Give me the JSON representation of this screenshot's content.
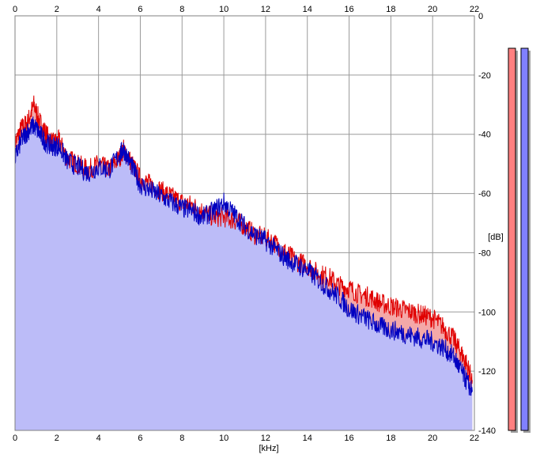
{
  "chart_data": {
    "type": "area",
    "x_unit_label": "[kHz]",
    "y_unit_label": "[dB]",
    "xlim": [
      0,
      22
    ],
    "ylim": [
      -140,
      0
    ],
    "x_ticks": [
      "0",
      "2",
      "4",
      "6",
      "8",
      "10",
      "12",
      "14",
      "16",
      "18",
      "20",
      "22"
    ],
    "y_ticks": [
      "0",
      "-20",
      "-40",
      "-60",
      "-80",
      "-100",
      "-120",
      "-140"
    ],
    "grid": true,
    "series": [
      {
        "color": "#e00000",
        "fill": "#f4a8a8",
        "x": [
          0,
          0.3,
          0.6,
          0.9,
          1.2,
          1.5,
          1.8,
          2.1,
          2.5,
          3.0,
          3.5,
          4.0,
          4.5,
          5.0,
          5.2,
          5.6,
          6.0,
          6.5,
          7.0,
          7.5,
          8.0,
          8.5,
          9.0,
          9.5,
          10.0,
          10.5,
          11.0,
          11.5,
          12.0,
          12.5,
          13.0,
          13.5,
          14.0,
          14.5,
          15.0,
          15.5,
          16.0,
          16.5,
          17.0,
          17.5,
          18.0,
          18.5,
          19.0,
          19.5,
          20.0,
          20.5,
          21.0,
          21.3,
          21.6,
          21.9
        ],
        "y": [
          -43,
          -38,
          -36,
          -30,
          -36,
          -40,
          -43,
          -42,
          -48,
          -50,
          -52,
          -50,
          -52,
          -48,
          -45,
          -50,
          -55,
          -57,
          -59,
          -61,
          -63,
          -64,
          -66,
          -68,
          -68,
          -69,
          -71,
          -74,
          -75,
          -77,
          -80,
          -83,
          -84,
          -87,
          -88,
          -91,
          -92,
          -94,
          -95,
          -97,
          -98,
          -99,
          -100,
          -101,
          -102,
          -105,
          -109,
          -113,
          -117,
          -123
        ]
      },
      {
        "color": "#0000c0",
        "fill": "#bcbcf8",
        "x": [
          0,
          0.3,
          0.6,
          0.9,
          1.2,
          1.5,
          1.8,
          2.1,
          2.5,
          3.0,
          3.5,
          4.0,
          4.5,
          5.0,
          5.2,
          5.6,
          6.0,
          6.5,
          7.0,
          7.5,
          8.0,
          8.5,
          9.0,
          9.5,
          10.0,
          10.5,
          11.0,
          11.5,
          12.0,
          12.5,
          13.0,
          13.5,
          14.0,
          14.5,
          15.0,
          15.5,
          16.0,
          16.5,
          17.0,
          17.5,
          18.0,
          18.5,
          19.0,
          19.5,
          20.0,
          20.5,
          21.0,
          21.3,
          21.6,
          21.9
        ],
        "y": [
          -48,
          -42,
          -39,
          -37,
          -40,
          -43,
          -44,
          -44,
          -49,
          -51,
          -53,
          -51,
          -52,
          -47,
          -45,
          -51,
          -57,
          -59,
          -61,
          -63,
          -65,
          -66,
          -68,
          -66,
          -63,
          -67,
          -71,
          -74,
          -76,
          -79,
          -82,
          -84,
          -86,
          -89,
          -92,
          -95,
          -99,
          -101,
          -103,
          -105,
          -106,
          -107,
          -108,
          -109,
          -110,
          -112,
          -115,
          -119,
          -123,
          -127
        ]
      }
    ]
  },
  "meters": [
    {
      "color": "#ff8080",
      "level": 1.0
    },
    {
      "color": "#8080ff",
      "level": 1.0
    }
  ]
}
